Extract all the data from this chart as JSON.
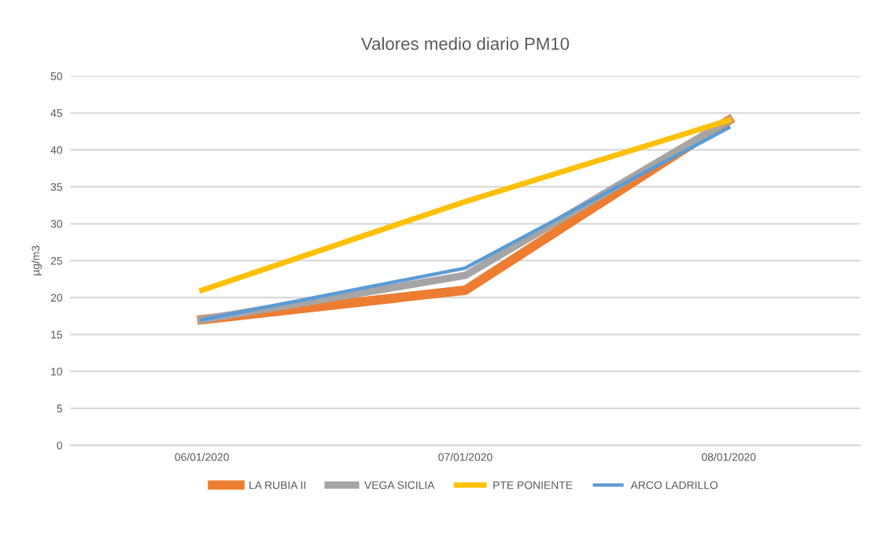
{
  "chart_data": {
    "type": "line",
    "title": "Valores medio diario PM10",
    "ylabel": "µg/m3",
    "categories": [
      "06/01/2020",
      "07/01/2020",
      "08/01/2020"
    ],
    "series": [
      {
        "name": "LA RUBIA II",
        "color": "#ed7d31",
        "values": [
          17,
          21,
          44
        ]
      },
      {
        "name": "VEGA SICILIA",
        "color": "#a5a5a5",
        "values": [
          17,
          23,
          44
        ]
      },
      {
        "name": "PTE PONIENTE",
        "color": "#ffc000",
        "values": [
          21,
          33,
          44
        ]
      },
      {
        "name": "ARCO LADRILLO",
        "color": "#5b9bd5",
        "values": [
          17,
          24,
          43
        ]
      }
    ],
    "ylim": [
      0,
      50
    ],
    "yticks": [
      0,
      5,
      10,
      15,
      20,
      25,
      30,
      35,
      40,
      45,
      50
    ],
    "grid": "y",
    "legend": "bottom",
    "marker": "none",
    "line_style": "solid"
  }
}
